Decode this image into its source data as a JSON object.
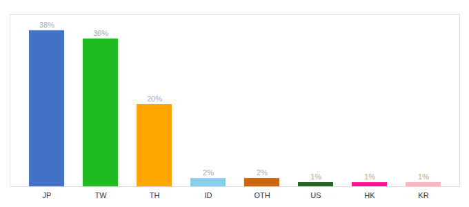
{
  "chart_data": {
    "type": "bar",
    "categories": [
      "JP",
      "TW",
      "TH",
      "ID",
      "OTH",
      "US",
      "HK",
      "KR"
    ],
    "values": [
      38,
      36,
      20,
      2,
      2,
      1,
      1,
      1
    ],
    "value_labels": [
      "38%",
      "36%",
      "20%",
      "2%",
      "2%",
      "1%",
      "1%",
      "1%"
    ],
    "colors": [
      "#4472C4",
      "#22BB22",
      "#FFA500",
      "#87CEEB",
      "#CC6611",
      "#226622",
      "#FF1493",
      "#FFB6C1"
    ],
    "ylim": [
      0,
      42
    ],
    "data_labels": true,
    "tick_labels": "x",
    "grid": false
  }
}
